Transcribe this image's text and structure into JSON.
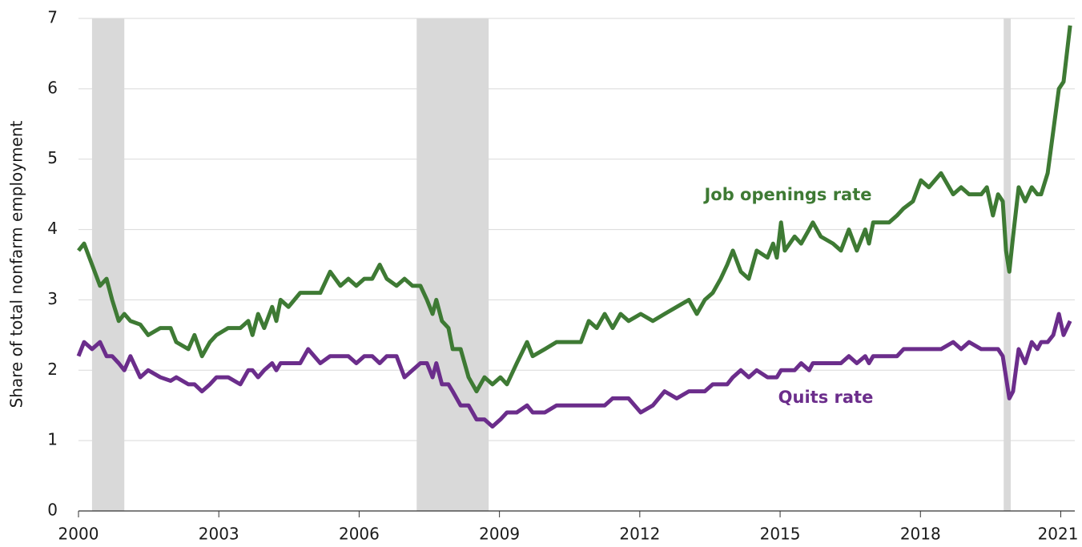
{
  "chart_data": {
    "type": "line",
    "y_label": "Share of total nonfarm employment",
    "x": [
      2000.0,
      2000.12,
      2000.29,
      2000.46,
      2000.6,
      2000.72,
      2000.86,
      2000.98,
      2001.11,
      2001.32,
      2001.49,
      2001.75,
      2001.97,
      2002.09,
      2002.35,
      2002.48,
      2002.64,
      2002.81,
      2002.95,
      2003.2,
      2003.46,
      2003.63,
      2003.72,
      2003.84,
      2003.97,
      2004.14,
      2004.23,
      2004.32,
      2004.49,
      2004.74,
      2004.91,
      2005.17,
      2005.38,
      2005.6,
      2005.77,
      2005.94,
      2006.11,
      2006.28,
      2006.44,
      2006.59,
      2006.8,
      2006.97,
      2007.14,
      2007.31,
      2007.45,
      2007.57,
      2007.65,
      2007.77,
      2007.91,
      2008.0,
      2008.17,
      2008.34,
      2008.51,
      2008.68,
      2008.85,
      2009.02,
      2009.16,
      2009.37,
      2009.59,
      2009.71,
      2009.97,
      2010.22,
      2010.48,
      2010.74,
      2010.91,
      2011.08,
      2011.25,
      2011.42,
      2011.59,
      2011.76,
      2012.02,
      2012.28,
      2012.53,
      2012.79,
      2013.05,
      2013.22,
      2013.39,
      2013.56,
      2013.73,
      2013.87,
      2013.99,
      2014.16,
      2014.33,
      2014.5,
      2014.73,
      2014.85,
      2014.93,
      2015.02,
      2015.1,
      2015.31,
      2015.45,
      2015.62,
      2015.7,
      2015.87,
      2016.13,
      2016.3,
      2016.47,
      2016.64,
      2016.82,
      2016.9,
      2016.99,
      2017.33,
      2017.5,
      2017.64,
      2017.84,
      2018.01,
      2018.18,
      2018.44,
      2018.7,
      2018.87,
      2019.04,
      2019.3,
      2019.42,
      2019.55,
      2019.66,
      2019.76,
      2019.83,
      2019.9,
      2019.98,
      2020.1,
      2020.24,
      2020.38,
      2020.5,
      2020.58,
      2020.72,
      2020.84,
      2020.96,
      2021.06,
      2021.2
    ],
    "series": [
      {
        "name": "Job openings rate",
        "color": "#3e7a34",
        "values": [
          3.7,
          3.8,
          3.5,
          3.2,
          3.3,
          3.0,
          2.7,
          2.8,
          2.7,
          2.65,
          2.5,
          2.6,
          2.6,
          2.4,
          2.3,
          2.5,
          2.2,
          2.4,
          2.5,
          2.6,
          2.6,
          2.7,
          2.5,
          2.8,
          2.6,
          2.9,
          2.7,
          3.0,
          2.9,
          3.1,
          3.1,
          3.1,
          3.4,
          3.2,
          3.3,
          3.2,
          3.3,
          3.3,
          3.5,
          3.3,
          3.2,
          3.3,
          3.2,
          3.2,
          3.0,
          2.8,
          3.0,
          2.7,
          2.6,
          2.3,
          2.3,
          1.9,
          1.7,
          1.9,
          1.8,
          1.9,
          1.8,
          2.1,
          2.4,
          2.2,
          2.3,
          2.4,
          2.4,
          2.4,
          2.7,
          2.6,
          2.8,
          2.6,
          2.8,
          2.7,
          2.8,
          2.7,
          2.8,
          2.9,
          3.0,
          2.8,
          3.0,
          3.1,
          3.3,
          3.5,
          3.7,
          3.4,
          3.3,
          3.7,
          3.6,
          3.8,
          3.6,
          4.1,
          3.7,
          3.9,
          3.8,
          4.0,
          4.1,
          3.9,
          3.8,
          3.7,
          4.0,
          3.7,
          4.0,
          3.8,
          4.1,
          4.1,
          4.2,
          4.3,
          4.4,
          4.7,
          4.6,
          4.8,
          4.5,
          4.6,
          4.5,
          4.5,
          4.6,
          4.2,
          4.5,
          4.4,
          3.7,
          3.4,
          3.9,
          4.6,
          4.4,
          4.6,
          4.5,
          4.5,
          4.8,
          5.4,
          6.0,
          6.1,
          6.9
        ]
      },
      {
        "name": "Quits rate",
        "color": "#6b2d8b",
        "values": [
          2.2,
          2.4,
          2.3,
          2.4,
          2.2,
          2.2,
          2.1,
          2.0,
          2.2,
          1.9,
          2.0,
          1.9,
          1.85,
          1.9,
          1.8,
          1.8,
          1.7,
          1.8,
          1.9,
          1.9,
          1.8,
          2.0,
          2.0,
          1.9,
          2.0,
          2.1,
          2.0,
          2.1,
          2.1,
          2.1,
          2.3,
          2.1,
          2.2,
          2.2,
          2.2,
          2.1,
          2.2,
          2.2,
          2.1,
          2.2,
          2.2,
          1.9,
          2.0,
          2.1,
          2.1,
          1.9,
          2.1,
          1.8,
          1.8,
          1.7,
          1.5,
          1.5,
          1.3,
          1.3,
          1.2,
          1.3,
          1.4,
          1.4,
          1.5,
          1.4,
          1.4,
          1.5,
          1.5,
          1.5,
          1.5,
          1.5,
          1.5,
          1.6,
          1.6,
          1.6,
          1.4,
          1.5,
          1.7,
          1.6,
          1.7,
          1.7,
          1.7,
          1.8,
          1.8,
          1.8,
          1.9,
          2.0,
          1.9,
          2.0,
          1.9,
          1.9,
          1.9,
          2.0,
          2.0,
          2.0,
          2.1,
          2.0,
          2.1,
          2.1,
          2.1,
          2.1,
          2.2,
          2.1,
          2.2,
          2.1,
          2.2,
          2.2,
          2.2,
          2.3,
          2.3,
          2.3,
          2.3,
          2.3,
          2.4,
          2.3,
          2.4,
          2.3,
          2.3,
          2.3,
          2.3,
          2.2,
          1.9,
          1.6,
          1.7,
          2.3,
          2.1,
          2.4,
          2.3,
          2.4,
          2.4,
          2.5,
          2.8,
          2.5,
          2.7
        ]
      }
    ],
    "shaded_ranges": [
      [
        2000.29,
        2000.98
      ],
      [
        2007.23,
        2008.77
      ],
      [
        2019.78,
        2019.93
      ]
    ],
    "shade_color": "#d9d9d9",
    "xlim": [
      2000,
      2021.3
    ],
    "xticks": [
      2000,
      2003,
      2006,
      2009,
      2012,
      2015,
      2018,
      2021
    ],
    "ylim": [
      0,
      7
    ],
    "yticks": [
      0,
      1,
      2,
      3,
      4,
      5,
      6,
      7
    ],
    "grid": true
  }
}
